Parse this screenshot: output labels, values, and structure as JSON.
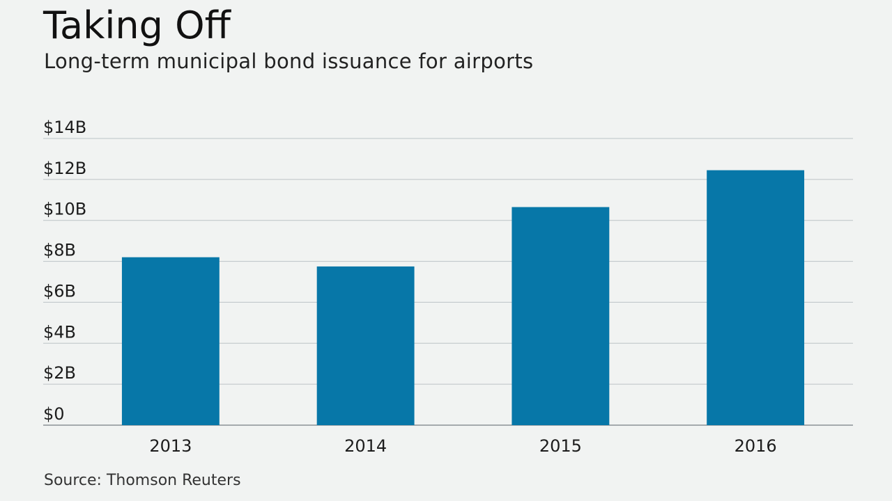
{
  "title": "Taking Off",
  "subtitle": "Long-term municipal bond issuance for airports",
  "source": "Source: Thomson Reuters",
  "colors": {
    "background": "#f1f3f2",
    "bar": "#0777a8",
    "gridline": "#bcc3c6",
    "baseline": "#8a9296"
  },
  "chart_data": {
    "type": "bar",
    "categories": [
      "2013",
      "2014",
      "2015",
      "2016"
    ],
    "values": [
      8.2,
      7.75,
      10.65,
      12.45
    ],
    "y_unit": "billion USD",
    "ylim": [
      0,
      14
    ],
    "yticks": [
      0,
      2,
      4,
      6,
      8,
      10,
      12,
      14
    ],
    "ytick_labels": [
      "$0",
      "$2B",
      "$4B",
      "$6B",
      "$8B",
      "$10B",
      "$12B",
      "$14B"
    ],
    "xlabel": "",
    "ylabel": "",
    "grid": true,
    "legend": "none"
  }
}
